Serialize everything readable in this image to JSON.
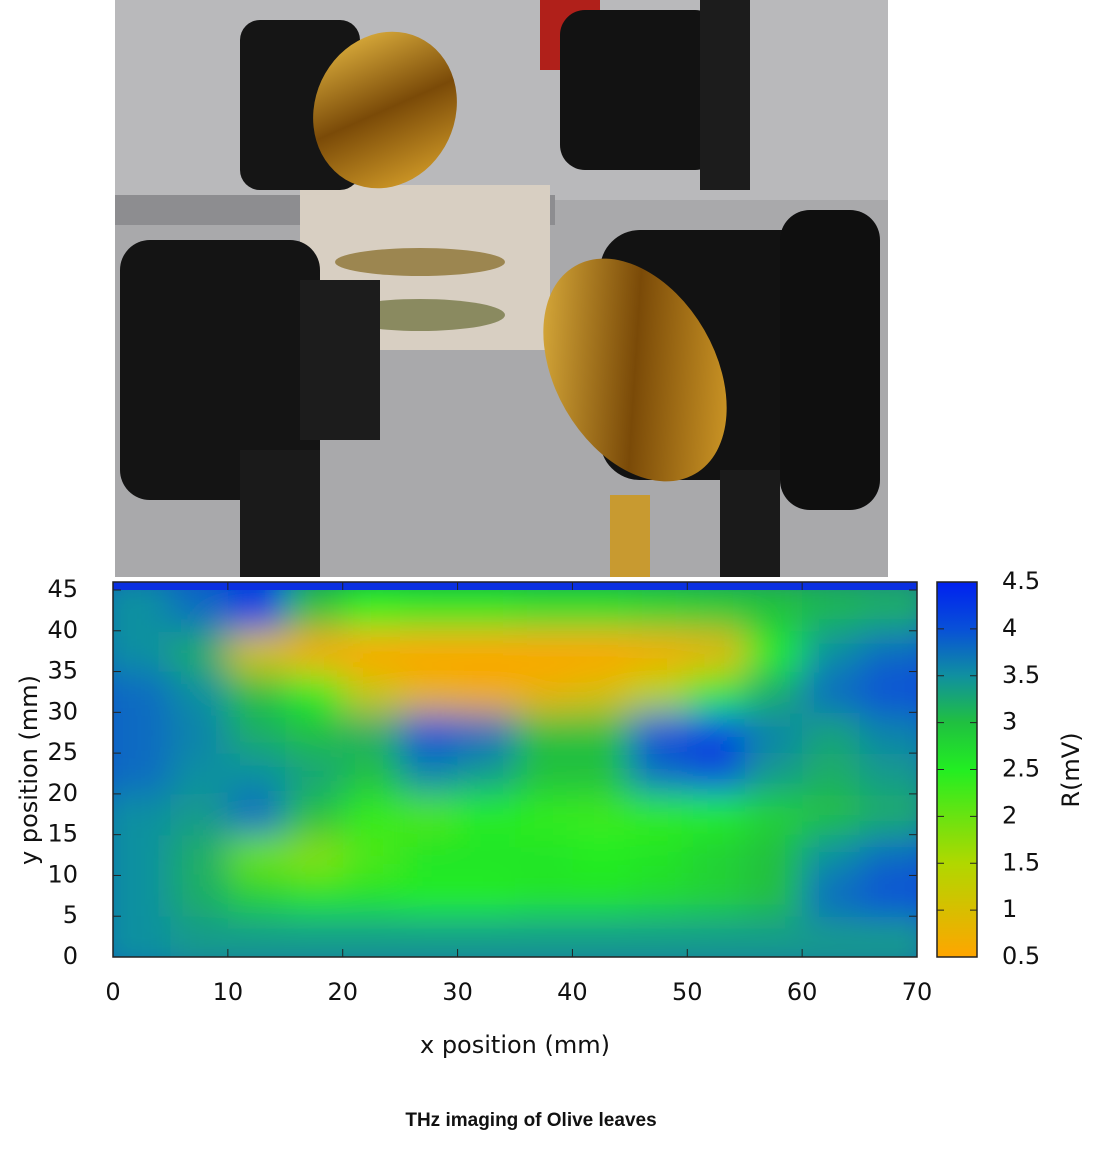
{
  "chart_data": {
    "type": "heatmap",
    "caption": "THz imaging of Olive leaves",
    "x_label": "x position (mm)",
    "y_label": "y position (mm)",
    "colorbar_label": "R(mV)",
    "x": [
      2.5,
      7.5,
      12.5,
      17.5,
      22.5,
      27.5,
      32.5,
      37.5,
      42.5,
      47.5,
      52.5,
      57.5,
      62.5,
      67.5
    ],
    "y": [
      2.5,
      7.5,
      12.5,
      17.5,
      22.5,
      27.5,
      32.5,
      37.5,
      42.5
    ],
    "z": [
      [
        3.5,
        3.4,
        3.4,
        3.4,
        3.4,
        3.4,
        3.4,
        3.4,
        3.4,
        3.4,
        3.4,
        3.4,
        3.4,
        3.4
      ],
      [
        3.5,
        3.2,
        2.8,
        2.6,
        2.6,
        2.5,
        2.5,
        2.6,
        2.6,
        2.7,
        2.8,
        3,
        3.8,
        4
      ],
      [
        3.5,
        3.2,
        2,
        1.8,
        2.2,
        2.6,
        2.6,
        2.6,
        2.5,
        2.6,
        2.8,
        3,
        3.5,
        3.8
      ],
      [
        3.5,
        3.4,
        3.8,
        3,
        2.4,
        2.2,
        2.5,
        2.4,
        2.3,
        2.4,
        2.5,
        2.8,
        3,
        3.2
      ],
      [
        3.8,
        3.5,
        3.5,
        3.3,
        3,
        3.6,
        3.4,
        3,
        3,
        3.8,
        4,
        3.4,
        3.2,
        3.4
      ],
      [
        3.8,
        3.6,
        3.2,
        3,
        3.2,
        4,
        3.8,
        3,
        3,
        4,
        4.2,
        3.6,
        3.3,
        3.6
      ],
      [
        3.8,
        3.5,
        3,
        2.5,
        1.2,
        0.8,
        0.7,
        0.8,
        1,
        1.5,
        2.5,
        3.2,
        3.8,
        4
      ],
      [
        3.5,
        3.2,
        1,
        0.6,
        0.5,
        0.5,
        0.5,
        0.5,
        0.5,
        0.6,
        0.8,
        2.5,
        3.5,
        3.8
      ],
      [
        3.5,
        3.8,
        4.2,
        3,
        2.5,
        2.6,
        2.6,
        2.7,
        2.7,
        2.8,
        2.9,
        3,
        3.1,
        3.2
      ]
    ],
    "xlim": [
      0,
      70
    ],
    "xticks": [
      0,
      10,
      20,
      30,
      40,
      50,
      60,
      70
    ],
    "ylim": [
      0,
      45
    ],
    "yticks": [
      0,
      5,
      10,
      15,
      20,
      25,
      30,
      35,
      40,
      45
    ],
    "zlim": [
      0.5,
      4.5
    ],
    "zticks": [
      0.5,
      1,
      1.5,
      2,
      2.5,
      3,
      3.5,
      4,
      4.5
    ],
    "colorscale": [
      {
        "value": 0.5,
        "color": "#ffa500"
      },
      {
        "value": 1.5,
        "color": "#b0d800"
      },
      {
        "value": 2.5,
        "color": "#22ee22"
      },
      {
        "value": 3.0,
        "color": "#20c040"
      },
      {
        "value": 3.5,
        "color": "#1090a0"
      },
      {
        "value": 4.0,
        "color": "#0850d8"
      },
      {
        "value": 4.5,
        "color": "#0020f0"
      }
    ]
  }
}
